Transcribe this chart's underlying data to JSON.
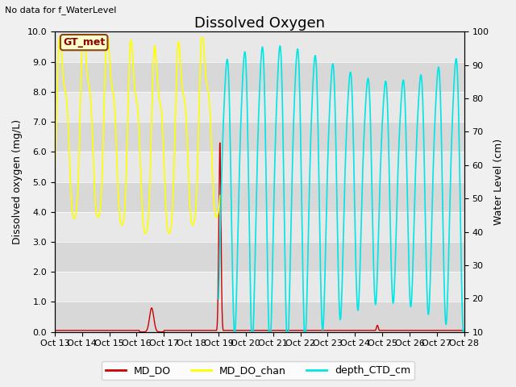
{
  "title": "Dissolved Oxygen",
  "top_left_text": "No data for f_WaterLevel",
  "ylabel_left": "Dissolved oxygen (mg/L)",
  "ylabel_right": "Water Level (cm)",
  "ylim_left": [
    0,
    10
  ],
  "ylim_right": [
    10,
    100
  ],
  "xlim": [
    0,
    15
  ],
  "xtick_labels": [
    "Oct 13",
    "Oct 14",
    "Oct 15",
    "Oct 16",
    "Oct 17",
    "Oct 18",
    "Oct 19",
    "Oct 20",
    "Oct 21",
    "Oct 22",
    "Oct 23",
    "Oct 24",
    "Oct 25",
    "Oct 26",
    "Oct 27",
    "Oct 28"
  ],
  "xtick_positions": [
    0,
    1,
    2,
    3,
    4,
    5,
    6,
    7,
    8,
    9,
    10,
    11,
    12,
    13,
    14,
    15
  ],
  "gt_met_label": "GT_met",
  "bg_color": "#e8e8e8",
  "stripe_light": "#e8e8e8",
  "stripe_dark": "#d8d8d8",
  "legend_labels": [
    "MD_DO",
    "MD_DO_chan",
    "depth_CTD_cm"
  ],
  "line_colors": [
    "#cc0000",
    "#ffff00",
    "#00e5e5"
  ],
  "title_fontsize": 13,
  "axis_label_fontsize": 9,
  "tick_fontsize": 8
}
